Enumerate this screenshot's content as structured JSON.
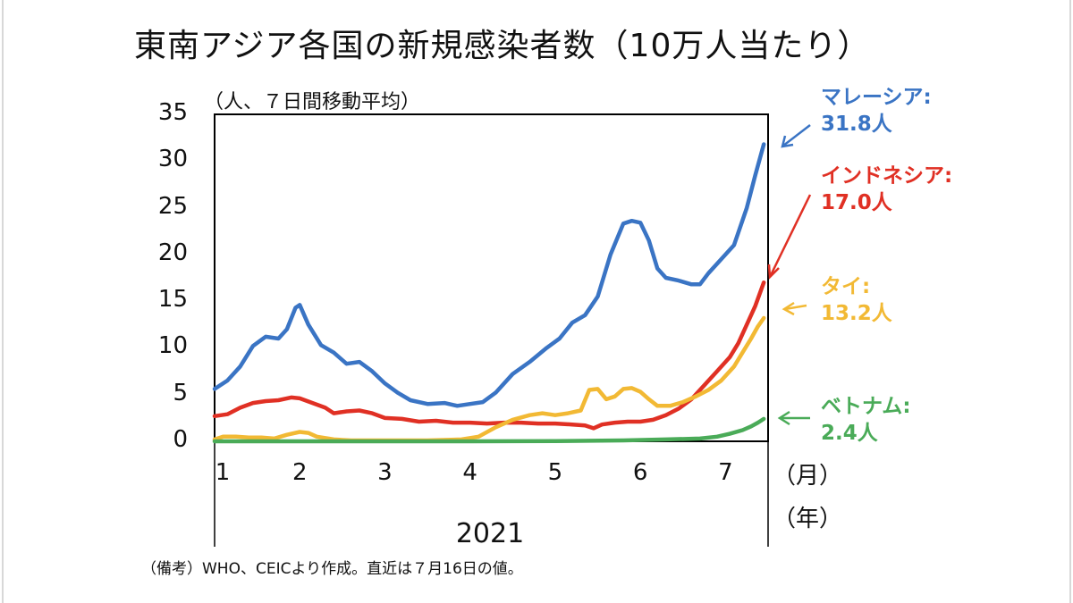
{
  "title": "東南アジア各国の新規感染者数（10万人当たり）",
  "unit_note": "（人、７日間移動平均）",
  "footnote": "（備考）WHO、CEICより作成。直近は７月16日の値。",
  "chart_data": {
    "type": "line",
    "title": "東南アジア各国の新規感染者数（10万人当たり）",
    "ylabel": "（人、７日間移動平均）",
    "ylim": [
      0,
      35
    ],
    "yticks": [
      "0",
      "5",
      "10",
      "15",
      "20",
      "25",
      "30",
      "35"
    ],
    "xlim": [
      1,
      7.5
    ],
    "x_ticks": [
      {
        "value": 1,
        "label": "1"
      },
      {
        "value": 2,
        "label": "2"
      },
      {
        "value": 3,
        "label": "3"
      },
      {
        "value": 4,
        "label": "4"
      },
      {
        "value": 5,
        "label": "5"
      },
      {
        "value": 6,
        "label": "6"
      },
      {
        "value": 7,
        "label": "7"
      }
    ],
    "x_suffix": "（月）",
    "year_label": "2021",
    "year_suffix": "（年）",
    "series": [
      {
        "name": "マレーシア",
        "final_label": "31.8人",
        "color": "#3a74c4",
        "points": [
          [
            1.0,
            5.6
          ],
          [
            1.15,
            6.5
          ],
          [
            1.3,
            8.0
          ],
          [
            1.45,
            10.2
          ],
          [
            1.6,
            11.2
          ],
          [
            1.75,
            11.0
          ],
          [
            1.85,
            12.0
          ],
          [
            1.95,
            14.3
          ],
          [
            2.0,
            14.6
          ],
          [
            2.1,
            12.5
          ],
          [
            2.25,
            10.3
          ],
          [
            2.4,
            9.5
          ],
          [
            2.55,
            8.3
          ],
          [
            2.7,
            8.5
          ],
          [
            2.85,
            7.5
          ],
          [
            3.0,
            6.2
          ],
          [
            3.15,
            5.2
          ],
          [
            3.3,
            4.4
          ],
          [
            3.5,
            4.0
          ],
          [
            3.7,
            4.1
          ],
          [
            3.85,
            3.8
          ],
          [
            4.0,
            4.0
          ],
          [
            4.15,
            4.2
          ],
          [
            4.3,
            5.2
          ],
          [
            4.5,
            7.2
          ],
          [
            4.7,
            8.5
          ],
          [
            4.9,
            10.0
          ],
          [
            5.05,
            11.0
          ],
          [
            5.2,
            12.7
          ],
          [
            5.35,
            13.5
          ],
          [
            5.5,
            15.5
          ],
          [
            5.65,
            20.0
          ],
          [
            5.8,
            23.3
          ],
          [
            5.9,
            23.6
          ],
          [
            6.0,
            23.4
          ],
          [
            6.1,
            21.5
          ],
          [
            6.2,
            18.5
          ],
          [
            6.3,
            17.5
          ],
          [
            6.45,
            17.2
          ],
          [
            6.6,
            16.8
          ],
          [
            6.7,
            16.8
          ],
          [
            6.8,
            18.0
          ],
          [
            6.95,
            19.5
          ],
          [
            7.1,
            21.0
          ],
          [
            7.25,
            25.0
          ],
          [
            7.35,
            28.5
          ],
          [
            7.45,
            31.8
          ]
        ]
      },
      {
        "name": "インドネシア",
        "final_label": "17.0人",
        "color": "#e03024",
        "points": [
          [
            1.0,
            2.7
          ],
          [
            1.15,
            2.9
          ],
          [
            1.3,
            3.6
          ],
          [
            1.45,
            4.1
          ],
          [
            1.6,
            4.3
          ],
          [
            1.75,
            4.4
          ],
          [
            1.9,
            4.7
          ],
          [
            2.0,
            4.6
          ],
          [
            2.15,
            4.1
          ],
          [
            2.3,
            3.6
          ],
          [
            2.4,
            3.0
          ],
          [
            2.55,
            3.2
          ],
          [
            2.7,
            3.3
          ],
          [
            2.85,
            3.0
          ],
          [
            3.0,
            2.5
          ],
          [
            3.2,
            2.4
          ],
          [
            3.4,
            2.1
          ],
          [
            3.6,
            2.2
          ],
          [
            3.8,
            2.0
          ],
          [
            4.0,
            2.0
          ],
          [
            4.2,
            1.9
          ],
          [
            4.4,
            2.0
          ],
          [
            4.6,
            2.0
          ],
          [
            4.8,
            1.9
          ],
          [
            5.0,
            1.9
          ],
          [
            5.2,
            1.8
          ],
          [
            5.35,
            1.7
          ],
          [
            5.45,
            1.4
          ],
          [
            5.55,
            1.8
          ],
          [
            5.7,
            2.0
          ],
          [
            5.85,
            2.1
          ],
          [
            6.0,
            2.1
          ],
          [
            6.15,
            2.3
          ],
          [
            6.3,
            2.8
          ],
          [
            6.45,
            3.5
          ],
          [
            6.6,
            4.5
          ],
          [
            6.75,
            6.0
          ],
          [
            6.9,
            7.5
          ],
          [
            7.05,
            9.0
          ],
          [
            7.15,
            10.5
          ],
          [
            7.25,
            12.5
          ],
          [
            7.35,
            14.5
          ],
          [
            7.45,
            17.0
          ]
        ]
      },
      {
        "name": "タイ",
        "final_label": "13.2人",
        "color": "#f2b934",
        "points": [
          [
            1.0,
            0.2
          ],
          [
            1.1,
            0.5
          ],
          [
            1.25,
            0.5
          ],
          [
            1.4,
            0.4
          ],
          [
            1.55,
            0.4
          ],
          [
            1.7,
            0.3
          ],
          [
            1.85,
            0.7
          ],
          [
            2.0,
            1.0
          ],
          [
            2.1,
            0.9
          ],
          [
            2.2,
            0.5
          ],
          [
            2.4,
            0.2
          ],
          [
            2.6,
            0.1
          ],
          [
            3.0,
            0.1
          ],
          [
            3.5,
            0.1
          ],
          [
            3.9,
            0.2
          ],
          [
            4.1,
            0.5
          ],
          [
            4.3,
            1.5
          ],
          [
            4.5,
            2.3
          ],
          [
            4.7,
            2.8
          ],
          [
            4.85,
            3.0
          ],
          [
            5.0,
            2.8
          ],
          [
            5.15,
            3.0
          ],
          [
            5.3,
            3.3
          ],
          [
            5.4,
            5.5
          ],
          [
            5.5,
            5.6
          ],
          [
            5.6,
            4.5
          ],
          [
            5.7,
            4.8
          ],
          [
            5.8,
            5.6
          ],
          [
            5.9,
            5.7
          ],
          [
            6.0,
            5.3
          ],
          [
            6.1,
            4.5
          ],
          [
            6.2,
            3.8
          ],
          [
            6.35,
            3.8
          ],
          [
            6.5,
            4.2
          ],
          [
            6.65,
            4.8
          ],
          [
            6.8,
            5.5
          ],
          [
            6.95,
            6.5
          ],
          [
            7.1,
            8.0
          ],
          [
            7.2,
            9.5
          ],
          [
            7.3,
            11.0
          ],
          [
            7.38,
            12.3
          ],
          [
            7.45,
            13.2
          ]
        ]
      },
      {
        "name": "ベトナム",
        "final_label": "2.4人",
        "color": "#4aab58",
        "points": [
          [
            1.0,
            0.0
          ],
          [
            2.0,
            0.0
          ],
          [
            3.0,
            0.0
          ],
          [
            4.0,
            0.0
          ],
          [
            5.0,
            0.02
          ],
          [
            5.8,
            0.1
          ],
          [
            6.3,
            0.2
          ],
          [
            6.7,
            0.3
          ],
          [
            6.9,
            0.5
          ],
          [
            7.05,
            0.8
          ],
          [
            7.2,
            1.2
          ],
          [
            7.3,
            1.6
          ],
          [
            7.38,
            2.0
          ],
          [
            7.45,
            2.4
          ]
        ]
      }
    ]
  }
}
